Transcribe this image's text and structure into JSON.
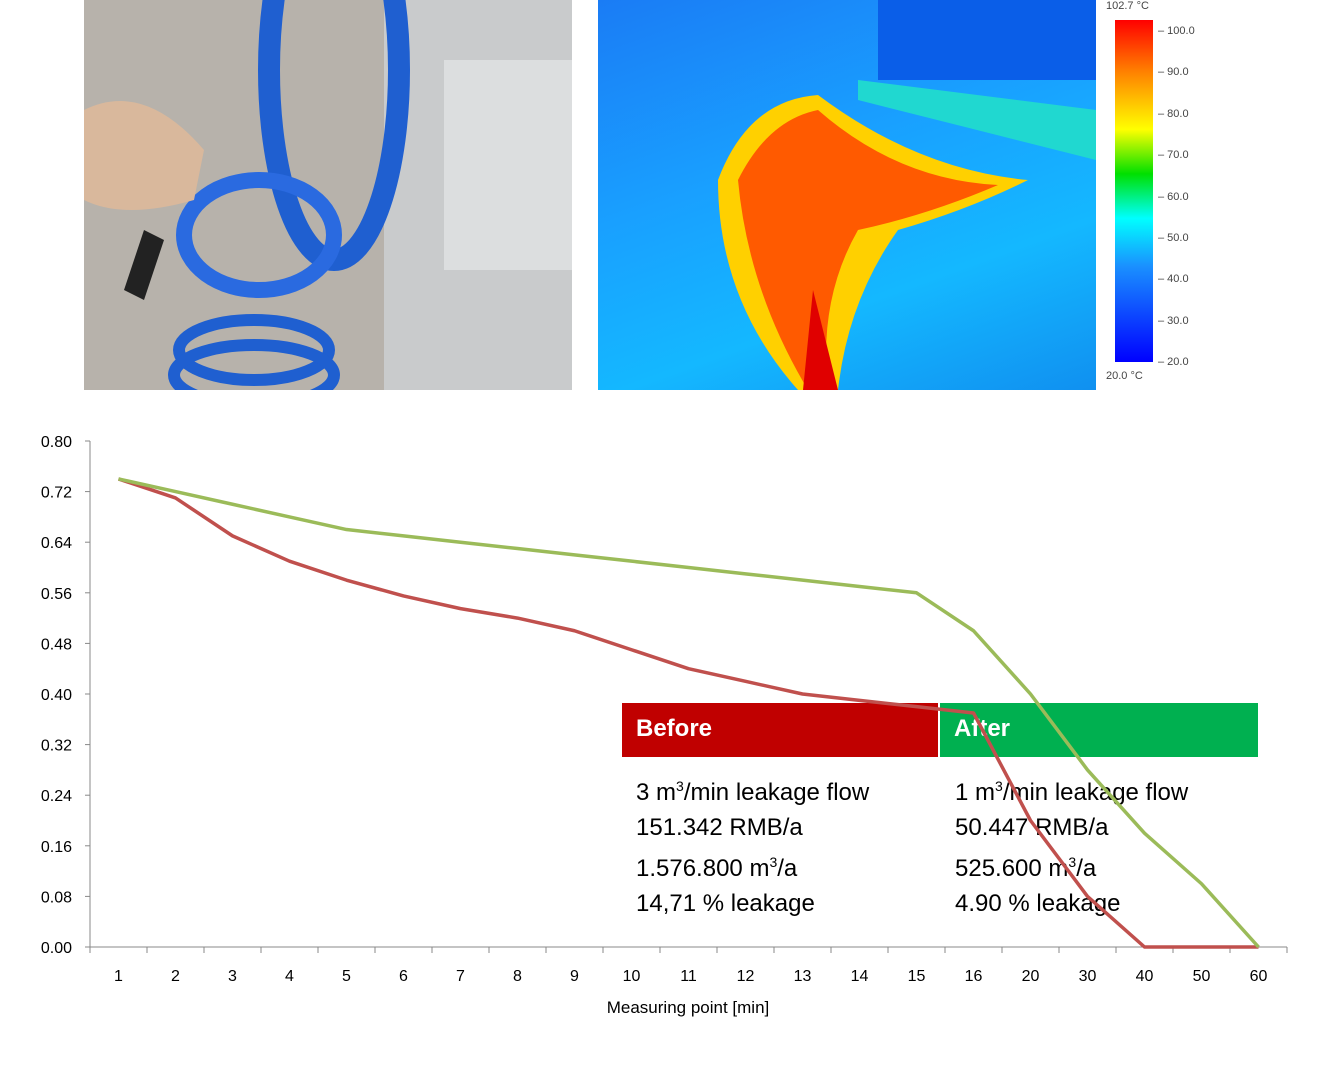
{
  "thermal_scale": {
    "max_label": "102.7 °C",
    "min_label": "20.0 °C",
    "ticks": [
      "100.0",
      "90.0",
      "80.0",
      "70.0",
      "60.0",
      "50.0",
      "40.0",
      "30.0",
      "20.0"
    ]
  },
  "legend": {
    "before": {
      "title": "Before",
      "color": "#c00000",
      "lines": [
        {
          "pre": "3 m",
          "sup": "3",
          "post": "/min leakage flow"
        },
        {
          "pre": "151.342 RMB/a",
          "sup": "",
          "post": ""
        },
        {
          "pre": "1.576.800 m",
          "sup": "3",
          "post": "/a"
        },
        {
          "pre": "14,71 % leakage",
          "sup": "",
          "post": ""
        }
      ]
    },
    "after": {
      "title": "After",
      "color": "#00b050",
      "lines": [
        {
          "pre": "1 m",
          "sup": "3",
          "post": "/min leakage flow"
        },
        {
          "pre": "50.447 RMB/a",
          "sup": "",
          "post": ""
        },
        {
          "pre": "525.600 m",
          "sup": "3",
          "post": "/a"
        },
        {
          "pre": "4.90 % leakage",
          "sup": "",
          "post": ""
        }
      ]
    }
  },
  "chart_data": {
    "type": "line",
    "xlabel": "Measuring point [min]",
    "ylabel": "",
    "categories": [
      "1",
      "2",
      "3",
      "4",
      "5",
      "6",
      "7",
      "8",
      "9",
      "10",
      "11",
      "12",
      "13",
      "14",
      "15",
      "16",
      "20",
      "30",
      "40",
      "50",
      "60"
    ],
    "ylim": [
      0,
      0.8
    ],
    "yticks": [
      "0.00",
      "0.08",
      "0.16",
      "0.24",
      "0.32",
      "0.40",
      "0.48",
      "0.56",
      "0.64",
      "0.72",
      "0.80"
    ],
    "grid": false,
    "series": [
      {
        "color": "#c0504d",
        "values": [
          0.74,
          0.71,
          0.65,
          0.61,
          0.58,
          0.555,
          0.535,
          0.52,
          0.5,
          0.47,
          0.44,
          0.42,
          0.4,
          0.39,
          0.38,
          0.37,
          0.2,
          0.08,
          0,
          0,
          0
        ]
      },
      {
        "color": "#9bbb59",
        "values": [
          0.74,
          0.72,
          0.7,
          0.68,
          0.66,
          0.65,
          0.64,
          0.63,
          0.62,
          0.61,
          0.6,
          0.59,
          0.58,
          0.57,
          0.56,
          0.5,
          0.4,
          0.28,
          0.18,
          0.1,
          0
        ]
      }
    ]
  }
}
